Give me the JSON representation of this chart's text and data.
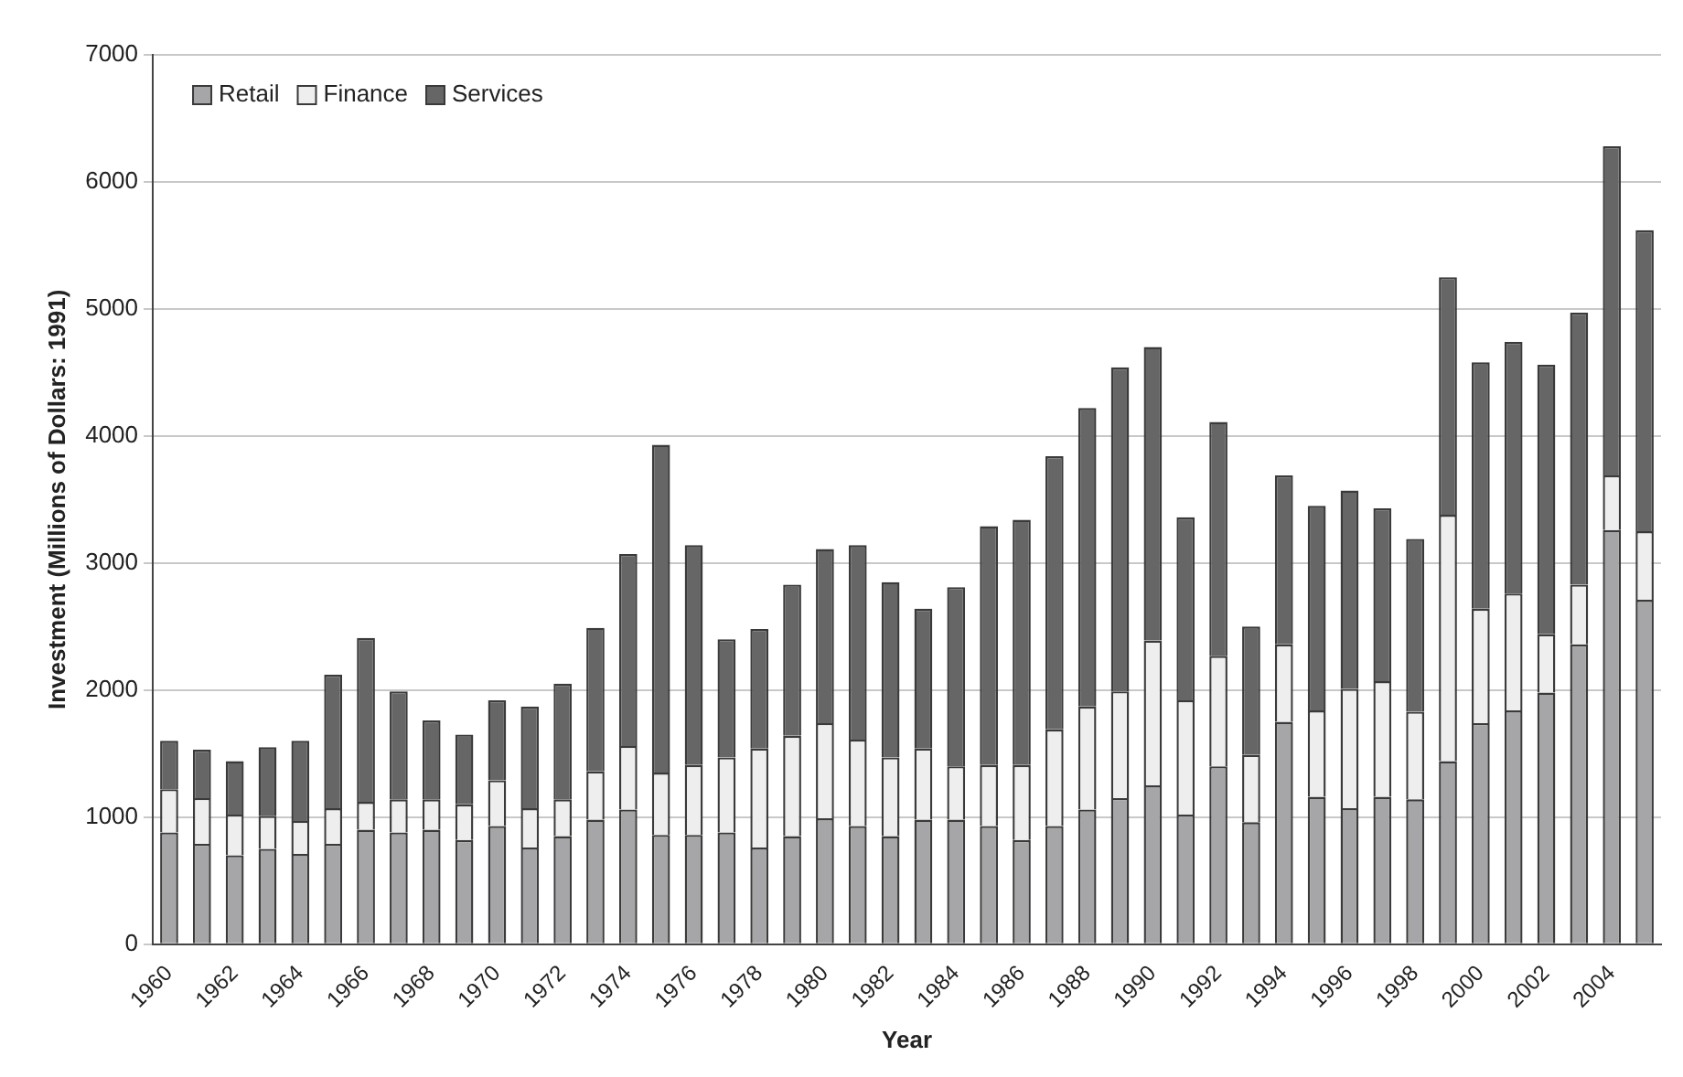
{
  "chart_data": {
    "type": "bar",
    "stacked": true,
    "xlabel": "Year",
    "ylabel": "Investment (Millions of Dollars: 1991)",
    "categories": [
      "1960",
      null,
      "1962",
      null,
      "1964",
      null,
      "1966",
      null,
      "1968",
      null,
      "1970",
      null,
      "1972",
      null,
      "1974",
      null,
      "1976",
      null,
      "1978",
      null,
      "1980",
      null,
      "1982",
      null,
      "1984",
      null,
      "1986",
      null,
      "1988",
      null,
      "1990",
      null,
      "1992",
      null,
      "1994",
      null,
      "1996",
      null,
      "1998",
      null,
      "2000",
      null,
      "2002",
      null,
      "2004",
      null
    ],
    "series": [
      {
        "name": "Retail",
        "color": "#a6a6a8",
        "values": [
          880,
          790,
          700,
          750,
          710,
          790,
          900,
          880,
          900,
          820,
          930,
          760,
          850,
          980,
          1060,
          860,
          860,
          880,
          760,
          850,
          990,
          930,
          850,
          980,
          980,
          930,
          820,
          930,
          1060,
          1150,
          1250,
          1020,
          1400,
          960,
          1750,
          1160,
          1070,
          1160,
          1140,
          1440,
          1740,
          1840,
          1980,
          2360,
          3260,
          2710
        ]
      },
      {
        "name": "Finance",
        "color": "#eeeeee",
        "values": [
          340,
          360,
          320,
          260,
          260,
          280,
          220,
          260,
          240,
          280,
          360,
          310,
          290,
          380,
          500,
          490,
          550,
          590,
          780,
          790,
          750,
          680,
          620,
          560,
          420,
          480,
          590,
          760,
          810,
          840,
          1140,
          900,
          870,
          530,
          610,
          680,
          940,
          910,
          690,
          1940,
          900,
          920,
          460,
          470,
          430,
          540
        ]
      },
      {
        "name": "Services",
        "color": "#666666",
        "values": [
          380,
          380,
          420,
          540,
          630,
          1050,
          1290,
          850,
          620,
          550,
          630,
          800,
          910,
          1130,
          1510,
          2580,
          1730,
          930,
          940,
          1190,
          1370,
          1530,
          1380,
          1100,
          1410,
          1880,
          1930,
          2150,
          2350,
          2550,
          2310,
          1440,
          1840,
          1010,
          1330,
          1610,
          1560,
          1360,
          1360,
          1870,
          1940,
          1980,
          2120,
          2140,
          2590,
          2370
        ]
      }
    ],
    "ylim": [
      0,
      7000
    ],
    "yticks": [
      0,
      1000,
      2000,
      3000,
      4000,
      5000,
      6000,
      7000
    ],
    "grid": "y",
    "legend": "top left"
  }
}
